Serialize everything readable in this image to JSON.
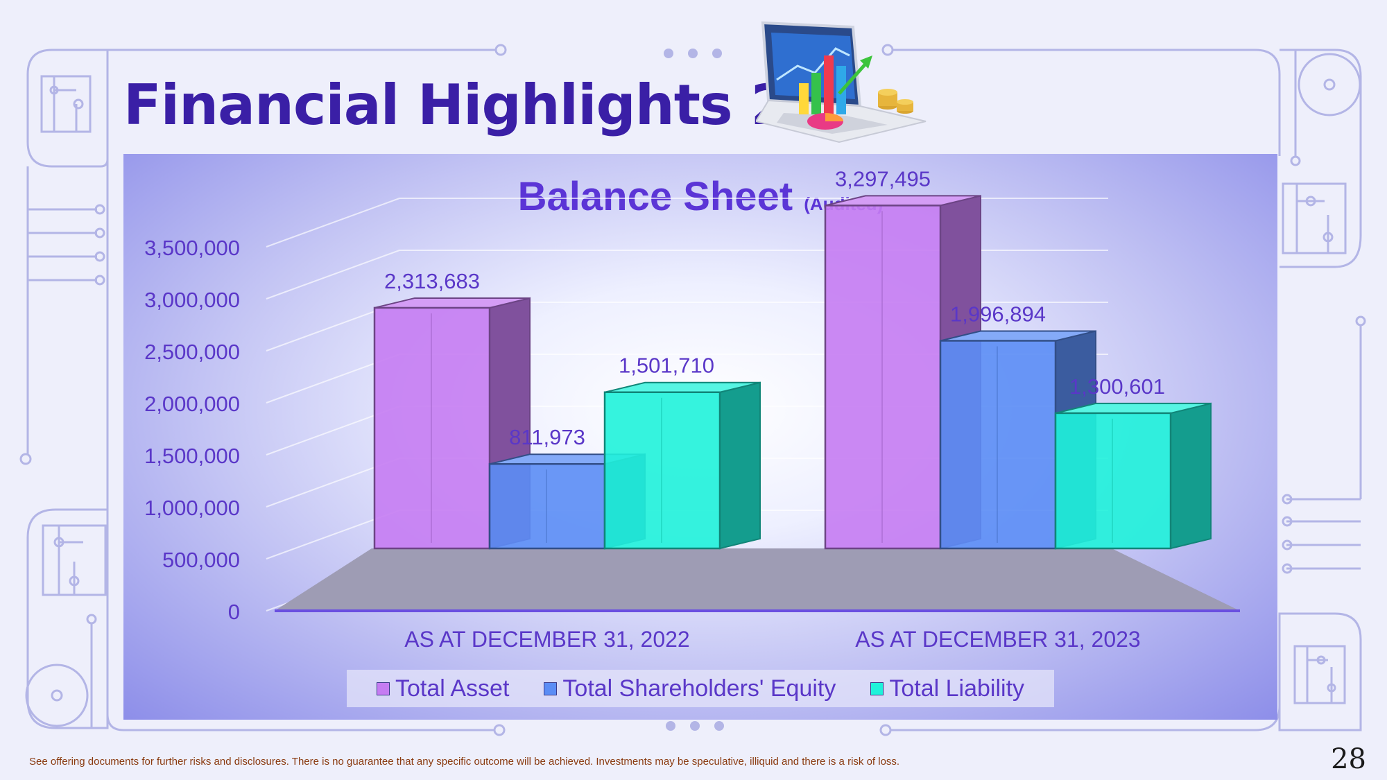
{
  "page": {
    "title": "Financial Highlights 2",
    "footer": "See offering documents for further risks and disclosures. There is no guarantee that any specific outcome will be achieved. Investments may be speculative, illiquid and there is a risk of loss.",
    "page_number": "28"
  },
  "chart_data": {
    "type": "bar",
    "title": "Balance Sheet",
    "subtitle": "(Audited)",
    "categories": [
      "AS AT DECEMBER 31, 2022",
      "AS AT DECEMBER 31, 2023"
    ],
    "series": [
      {
        "name": "Total Asset",
        "values": [
          2313683,
          3297495
        ],
        "labels": [
          "2,313,683",
          "3,297,495"
        ],
        "color": "#c57cf2"
      },
      {
        "name": "Total Shareholders' Equity",
        "values": [
          811973,
          1996894
        ],
        "labels": [
          "811,973",
          "1,996,894"
        ],
        "color": "#5b8df5"
      },
      {
        "name": "Total Liability",
        "values": [
          1501710,
          1300601
        ],
        "labels": [
          "1,501,710",
          "1,300,601"
        ],
        "color": "#1ff2da"
      }
    ],
    "yticks": [
      "0",
      "500,000",
      "1,000,000",
      "1,500,000",
      "2,000,000",
      "2,500,000",
      "3,000,000",
      "3,500,000"
    ],
    "ylim": [
      0,
      3500000
    ],
    "three_d": true,
    "grid": true,
    "legend": "bottom",
    "colors": {
      "title": "#3a1fa6",
      "text": "#5a37c8",
      "floor": "#9e9cb4"
    }
  }
}
